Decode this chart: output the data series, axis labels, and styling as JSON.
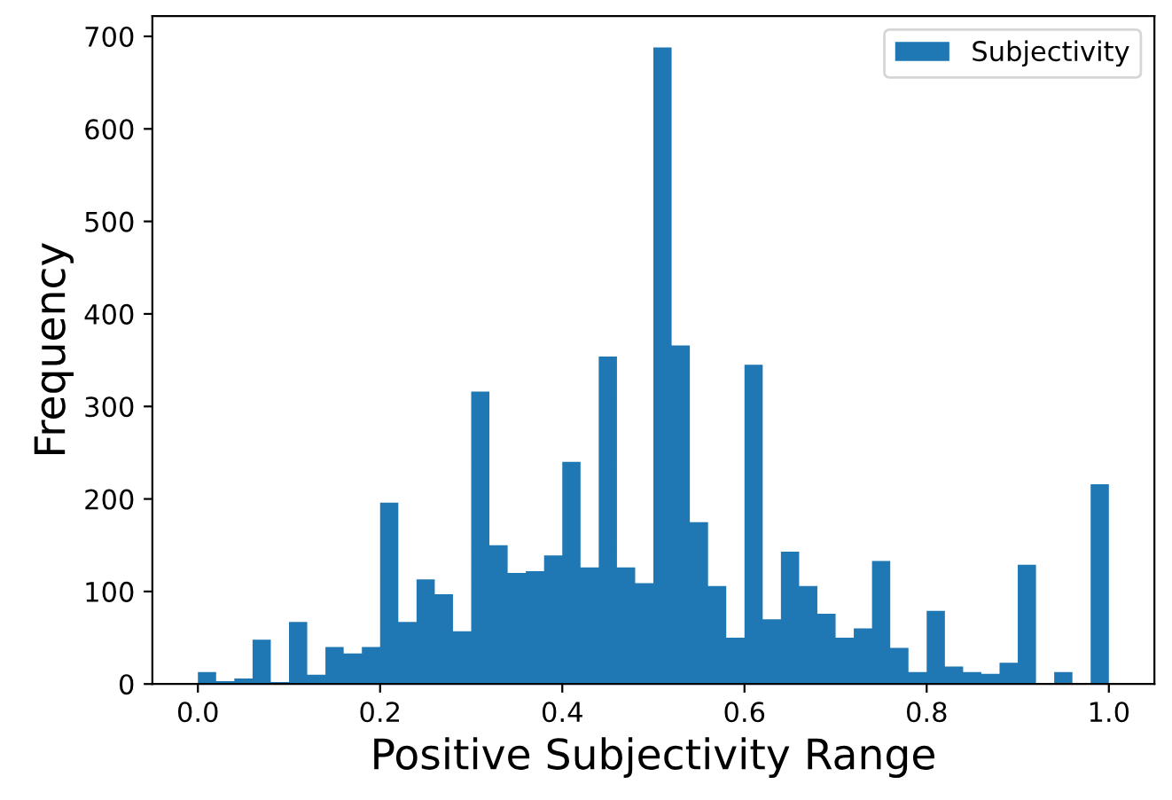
{
  "chart_data": {
    "type": "histogram",
    "xlabel": "Positive Subjectivity Range",
    "ylabel": "Frequency",
    "bins": [
      0.0,
      0.02,
      0.04,
      0.06,
      0.08,
      0.1,
      0.12,
      0.14,
      0.16,
      0.18,
      0.2,
      0.22,
      0.24,
      0.26,
      0.28,
      0.3,
      0.32,
      0.34,
      0.36,
      0.38,
      0.4,
      0.42,
      0.44,
      0.46,
      0.48,
      0.5,
      0.52,
      0.54,
      0.56,
      0.58,
      0.6,
      0.62,
      0.64,
      0.66,
      0.68,
      0.7,
      0.72,
      0.74,
      0.76,
      0.78,
      0.8,
      0.82,
      0.84,
      0.86,
      0.88,
      0.9,
      0.92,
      0.94,
      0.96,
      0.98,
      1.0
    ],
    "series": [
      {
        "name": "Subjectivity",
        "color": "#1f77b4",
        "values": [
          13,
          3,
          6,
          48,
          2,
          67,
          10,
          40,
          33,
          40,
          196,
          67,
          113,
          97,
          57,
          316,
          150,
          120,
          122,
          139,
          240,
          126,
          354,
          126,
          109,
          688,
          366,
          175,
          106,
          50,
          345,
          70,
          143,
          106,
          76,
          50,
          60,
          133,
          39,
          13,
          79,
          19,
          13,
          11,
          23,
          129,
          0,
          13,
          0,
          216
        ]
      }
    ],
    "xlim": [
      -0.05,
      1.05
    ],
    "ylim": [
      0,
      722
    ],
    "xticks": [
      {
        "value": 0.0,
        "label": "0.0"
      },
      {
        "value": 0.2,
        "label": "0.2"
      },
      {
        "value": 0.4,
        "label": "0.4"
      },
      {
        "value": 0.6,
        "label": "0.6"
      },
      {
        "value": 0.8,
        "label": "0.8"
      },
      {
        "value": 1.0,
        "label": "1.0"
      }
    ],
    "yticks": [
      0,
      100,
      200,
      300,
      400,
      500,
      600,
      700
    ],
    "legend": "top right",
    "grid": false
  }
}
